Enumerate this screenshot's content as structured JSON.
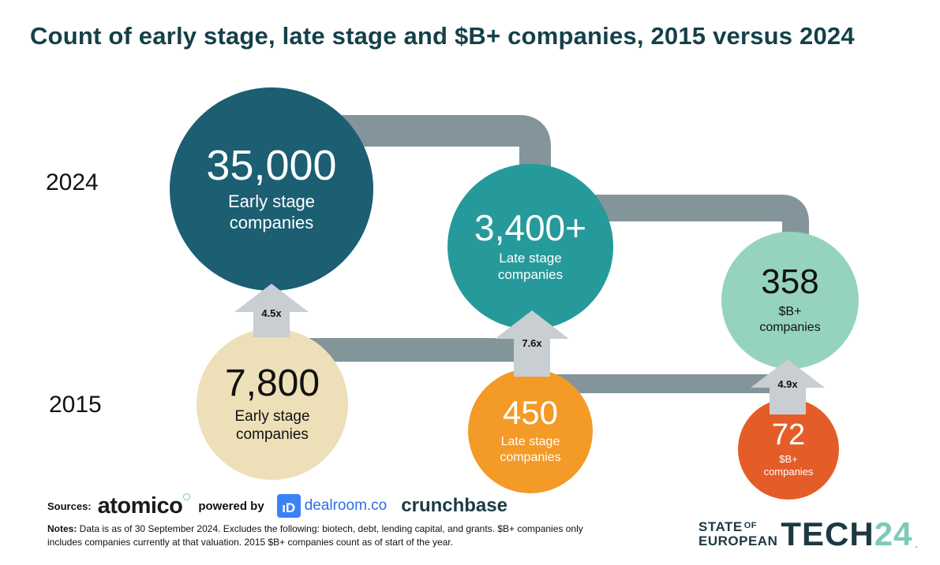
{
  "title": "Count of early stage, late stage and $B+ companies, 2015 versus 2024",
  "years": {
    "top": "2024",
    "bottom": "2015"
  },
  "chart_data": {
    "type": "bubble-comparison",
    "series": [
      {
        "year": "2024",
        "stages": [
          {
            "value": "35,000",
            "label": "Early stage companies"
          },
          {
            "value": "3,400+",
            "label": "Late stage companies"
          },
          {
            "value": "358",
            "label": "$B+ companies"
          }
        ]
      },
      {
        "year": "2015",
        "stages": [
          {
            "value": "7,800",
            "label": "Early stage companies"
          },
          {
            "value": "450",
            "label": "Late stage companies"
          },
          {
            "value": "72",
            "label": "$B+ companies"
          }
        ]
      }
    ],
    "growth": [
      "4.5x",
      "7.6x",
      "4.9x"
    ],
    "colors": {
      "early_2024": "#1c5e72",
      "late_2024": "#269a9a",
      "bplus_2024": "#95d3bf",
      "early_2015": "#ede0b8",
      "late_2015": "#f39a27",
      "bplus_2015": "#e45d28",
      "connector": "#83959a",
      "arrow": "#c8ced1"
    }
  },
  "bubbles": {
    "early_2024": {
      "value": "35,000",
      "label": "Early stage companies"
    },
    "late_2024": {
      "value": "3,400+",
      "label": "Late stage companies"
    },
    "bplus_2024": {
      "value": "358",
      "label": "$B+ companies"
    },
    "early_2015": {
      "value": "7,800",
      "label": "Early stage companies"
    },
    "late_2015": {
      "value": "450",
      "label": "Late stage companies"
    },
    "bplus_2015": {
      "value": "72",
      "label": "$B+ companies"
    }
  },
  "arrows": {
    "early": "4.5x",
    "late": "7.6x",
    "bplus": "4.9x"
  },
  "footer": {
    "sources_label": "Sources:",
    "atomico": "atomico",
    "powered_by": "powered by",
    "dealroom_badge": "ıD",
    "dealroom": "dealroom.co",
    "crunchbase": "crunchbase",
    "notes_label": "Notes:",
    "notes_text": " Data is as of 30 September 2024. Excludes the following: biotech, debt, lending capital, and grants. $B+ companies only includes companies currently at that valuation. 2015 $B+ companies count as of start of the year."
  },
  "brand": {
    "state": "STATE",
    "of": "OF",
    "european": "EUROPEAN",
    "tech": "TECH",
    "num": "24",
    "dot": "."
  }
}
